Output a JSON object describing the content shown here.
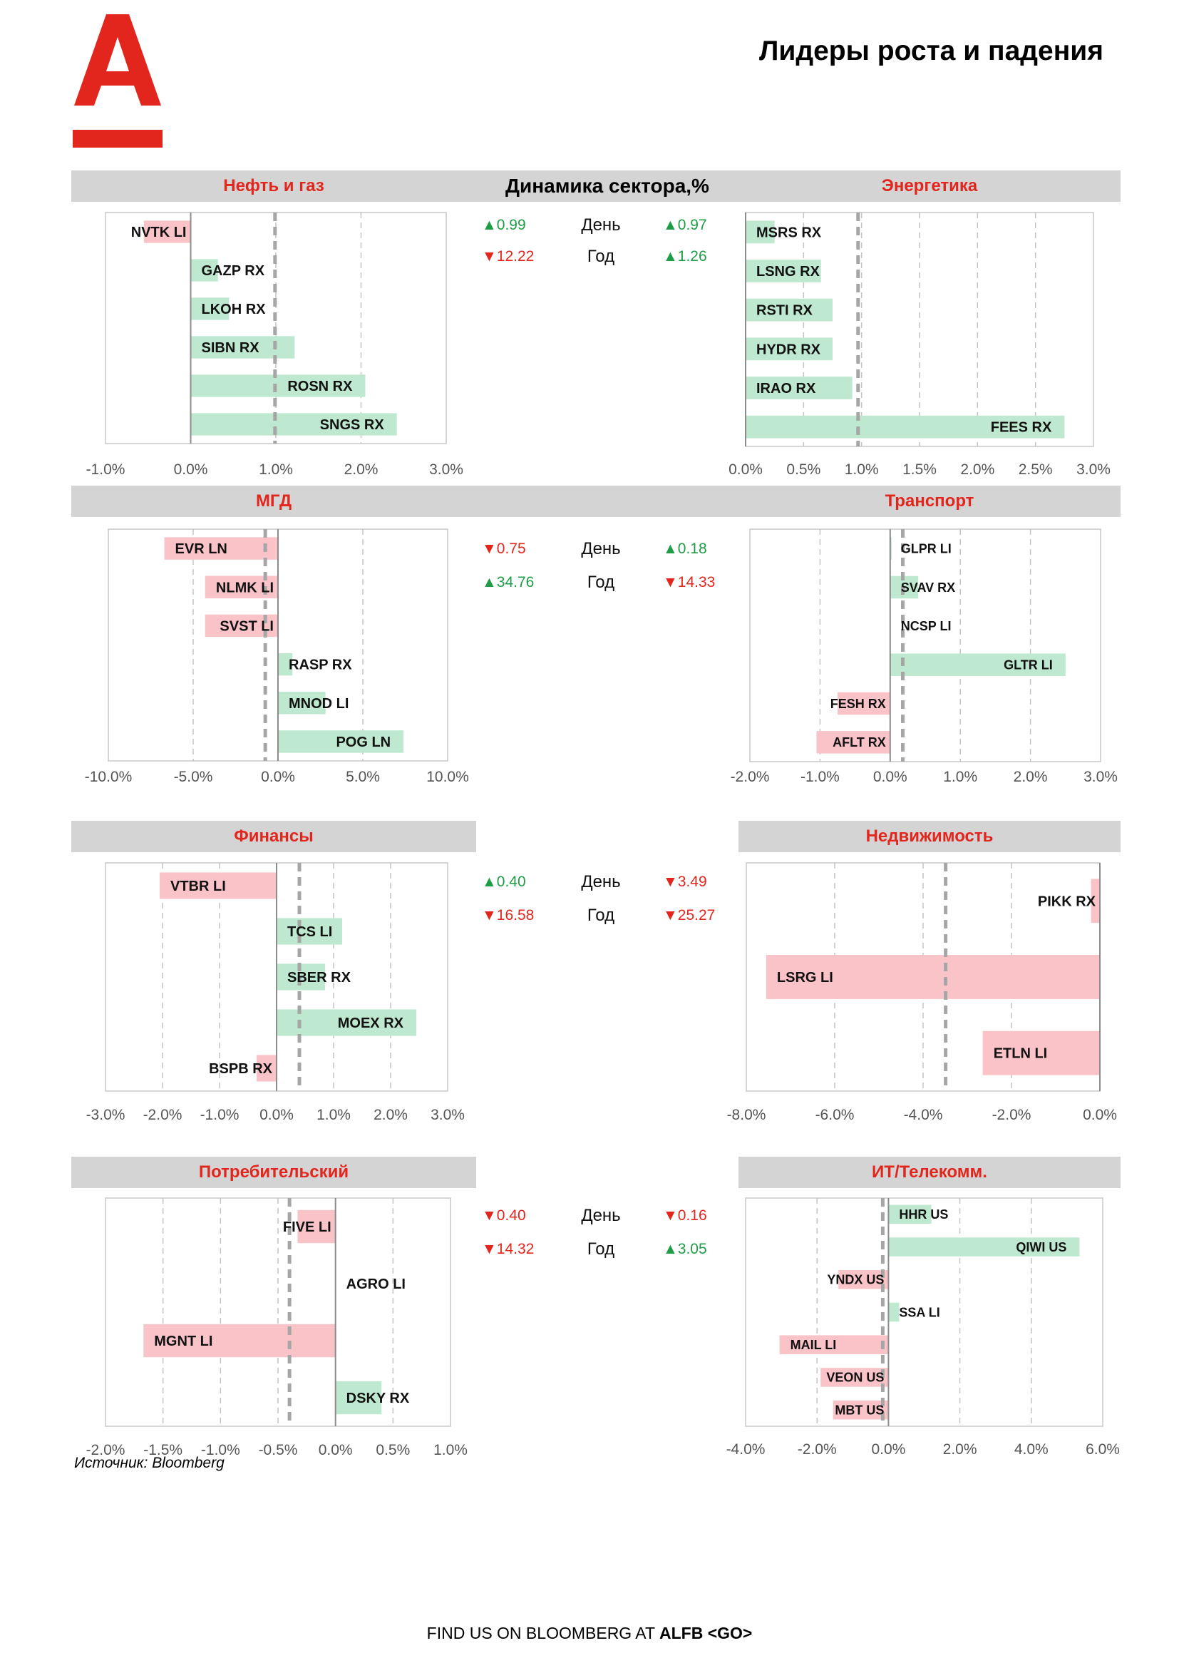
{
  "page": {
    "title": "Лидеры роста и падения",
    "dynamics_title": "Динамика сектора,%",
    "source": "Источник: Bloomberg",
    "footer_text": "FIND US ON BLOOMBERG AT",
    "footer_bold": "ALFB <GO>",
    "labels": {
      "day": "День",
      "year": "Год"
    }
  },
  "colors": {
    "brand_red": "#e3261d",
    "positive_bar": "#bfe8d0",
    "negative_bar": "#f9c3c8",
    "positive_text": "#1e9d46",
    "negative_text": "#e3261d",
    "band": "#d4d4d4"
  },
  "stats": [
    {
      "left": {
        "day": "▲0.99",
        "year": "▼12.22"
      },
      "right": {
        "day": "▲0.97",
        "year": "▲1.26"
      }
    },
    {
      "left": {
        "day": "▼0.75",
        "year": "▲34.76"
      },
      "right": {
        "day": "▲0.18",
        "year": "▼14.33"
      }
    },
    {
      "left": {
        "day": "▲0.40",
        "year": "▼16.58"
      },
      "right": {
        "day": "▼3.49",
        "year": "▼25.27"
      }
    },
    {
      "left": {
        "day": "▼0.40",
        "year": "▼14.32"
      },
      "right": {
        "day": "▼0.16",
        "year": "▲3.05"
      }
    }
  ],
  "chart_data": [
    {
      "id": "oil-gas",
      "title": "Нефть и газ",
      "type": "bar",
      "orientation": "horizontal",
      "categories": [
        "NVTK LI",
        "GAZP RX",
        "LKOH RX",
        "SIBN RX",
        "ROSN RX",
        "SNGS RX"
      ],
      "values": [
        -0.55,
        0.32,
        0.45,
        1.22,
        2.05,
        2.42
      ],
      "xlim": [
        -1.0,
        3.0
      ],
      "ticks": [
        -1.0,
        0.0,
        1.0,
        2.0,
        3.0
      ],
      "tick_labels": [
        "-1.0%",
        "0.0%",
        "1.0%",
        "2.0%",
        "3.0%"
      ],
      "reference_line": 0.99,
      "grid": true
    },
    {
      "id": "energy",
      "title": "Энергетика",
      "type": "bar",
      "orientation": "horizontal",
      "categories": [
        "MSRS RX",
        "LSNG RX",
        "RSTI RX",
        "HYDR RX",
        "IRAO RX",
        "FEES RX"
      ],
      "values": [
        0.25,
        0.65,
        0.75,
        0.75,
        0.92,
        2.75
      ],
      "xlim": [
        0.0,
        3.0
      ],
      "ticks": [
        0.0,
        0.5,
        1.0,
        1.5,
        2.0,
        2.5,
        3.0
      ],
      "tick_labels": [
        "0.0%",
        "0.5%",
        "1.0%",
        "1.5%",
        "2.0%",
        "2.5%",
        "3.0%"
      ],
      "reference_line": 0.97,
      "grid": true
    },
    {
      "id": "mgd",
      "title": "МГД",
      "type": "bar",
      "orientation": "horizontal",
      "categories": [
        "EVR LN",
        "NLMK LI",
        "SVST LI",
        "RASP RX",
        "MNOD LI",
        "POG LN"
      ],
      "values": [
        -6.7,
        -4.3,
        -4.3,
        0.85,
        2.8,
        7.4
      ],
      "xlim": [
        -10.0,
        10.0
      ],
      "ticks": [
        -10.0,
        -5.0,
        0.0,
        5.0,
        10.0
      ],
      "tick_labels": [
        "-10.0%",
        "-5.0%",
        "0.0%",
        "5.0%",
        "10.0%"
      ],
      "reference_line": -0.75,
      "grid": true
    },
    {
      "id": "transport",
      "title": "Транспорт",
      "type": "bar",
      "orientation": "horizontal",
      "categories": [
        "GLPR LI",
        "SVAV RX",
        "NCSP LI",
        "GLTR LI",
        "FESH RX",
        "AFLT RX"
      ],
      "values": [
        0.02,
        0.4,
        0.0,
        2.5,
        -0.75,
        -1.05
      ],
      "xlim": [
        -2.0,
        3.0
      ],
      "ticks": [
        -2.0,
        -1.0,
        0.0,
        1.0,
        2.0,
        3.0
      ],
      "tick_labels": [
        "-2.0%",
        "-1.0%",
        "0.0%",
        "1.0%",
        "2.0%",
        "3.0%"
      ],
      "reference_line": 0.18,
      "grid": true
    },
    {
      "id": "finance",
      "title": "Финансы",
      "type": "bar",
      "orientation": "horizontal",
      "categories": [
        "VTBR LI",
        "TCS LI",
        "SBER RX",
        "MOEX RX",
        "BSPB RX"
      ],
      "values": [
        -2.05,
        1.15,
        0.85,
        2.45,
        -0.35
      ],
      "xlim": [
        -3.0,
        3.0
      ],
      "ticks": [
        -3.0,
        -2.0,
        -1.0,
        0.0,
        1.0,
        2.0,
        3.0
      ],
      "tick_labels": [
        "-3.0%",
        "-2.0%",
        "-1.0%",
        "0.0%",
        "1.0%",
        "2.0%",
        "3.0%"
      ],
      "reference_line": 0.4,
      "grid": true
    },
    {
      "id": "real-estate",
      "title": "Недвижимость",
      "type": "bar",
      "orientation": "horizontal",
      "categories": [
        "PIKK RX",
        "LSRG LI",
        "ETLN LI"
      ],
      "values": [
        -0.2,
        -7.55,
        -2.65
      ],
      "xlim": [
        -8.0,
        0.0
      ],
      "ticks": [
        -8.0,
        -6.0,
        -4.0,
        -2.0,
        0.0
      ],
      "tick_labels": [
        "-8.0%",
        "-6.0%",
        "-4.0%",
        "-2.0%",
        "0.0%"
      ],
      "reference_line": -3.49,
      "grid": true
    },
    {
      "id": "consumer",
      "title": "Потребительский",
      "type": "bar",
      "orientation": "horizontal",
      "categories": [
        "FIVE LI",
        "AGRO LI",
        "MGNT LI",
        "DSKY RX"
      ],
      "values": [
        -0.33,
        0.0,
        -1.67,
        0.4
      ],
      "xlim": [
        -2.0,
        1.0
      ],
      "ticks": [
        -2.0,
        -1.5,
        -1.0,
        -0.5,
        0.0,
        0.5,
        1.0
      ],
      "tick_labels": [
        "-2.0%",
        "-1.5%",
        "-1.0%",
        "-0.5%",
        "0.0%",
        "0.5%",
        "1.0%"
      ],
      "reference_line": -0.4,
      "grid": true
    },
    {
      "id": "it-telecom",
      "title": "ИТ/Телекомм.",
      "type": "bar",
      "orientation": "horizontal",
      "categories": [
        "HHR US",
        "QIWI US",
        "YNDX US",
        "SSA LI",
        "MAIL LI",
        "VEON US",
        "MBT US"
      ],
      "values": [
        1.2,
        5.35,
        -1.4,
        0.3,
        -3.05,
        -1.9,
        -1.55
      ],
      "xlim": [
        -4.0,
        6.0
      ],
      "ticks": [
        -4.0,
        -2.0,
        0.0,
        2.0,
        4.0,
        6.0
      ],
      "tick_labels": [
        "-4.0%",
        "-2.0%",
        "0.0%",
        "2.0%",
        "4.0%",
        "6.0%"
      ],
      "reference_line": -0.16,
      "grid": true
    }
  ]
}
